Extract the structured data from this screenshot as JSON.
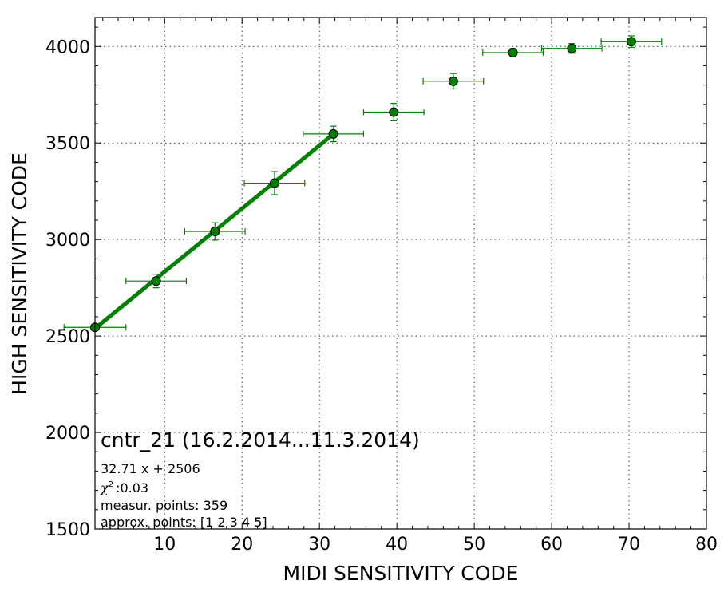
{
  "chart_data": {
    "type": "scatter",
    "xlabel": "MIDI SENSITIVITY CODE",
    "ylabel": "HIGH SENSITIVITY CODE",
    "xlim": [
      1,
      80
    ],
    "ylim": [
      1500,
      4150
    ],
    "xticks": [
      10,
      20,
      30,
      40,
      50,
      60,
      70,
      80
    ],
    "yticks": [
      1500,
      2000,
      2500,
      3000,
      3500,
      4000
    ],
    "grid": true,
    "series": [
      {
        "style": "errorbar-markers",
        "color": "#008000",
        "points": [
          {
            "x": 1.0,
            "y": 2545,
            "xerr": 4.0,
            "yerr": 15
          },
          {
            "x": 8.9,
            "y": 2785,
            "xerr": 3.9,
            "yerr": 35
          },
          {
            "x": 16.5,
            "y": 3042,
            "xerr": 3.9,
            "yerr": 45
          },
          {
            "x": 24.2,
            "y": 3292,
            "xerr": 3.9,
            "yerr": 60
          },
          {
            "x": 31.8,
            "y": 3547,
            "xerr": 3.9,
            "yerr": 40
          },
          {
            "x": 39.6,
            "y": 3660,
            "xerr": 3.9,
            "yerr": 45
          },
          {
            "x": 47.3,
            "y": 3820,
            "xerr": 3.9,
            "yerr": 40
          },
          {
            "x": 55.0,
            "y": 3968,
            "xerr": 3.9,
            "yerr": 22
          },
          {
            "x": 62.6,
            "y": 3990,
            "xerr": 3.9,
            "yerr": 25
          },
          {
            "x": 70.3,
            "y": 4025,
            "xerr": 3.9,
            "yerr": 30
          }
        ]
      },
      {
        "style": "fit-line",
        "color": "#008000",
        "x": [
          1.0,
          31.8
        ],
        "y": [
          2539,
          3546
        ]
      }
    ],
    "annotations": {
      "title": "cntr_21 (16.2.2014...11.3.2014)",
      "fit": "32.71 x + 2506",
      "chi_symbol": "χ",
      "chi_value": ":0.03",
      "measur": "measur. points: 359",
      "approx": "approx. points: [1 2 3 4 5]"
    }
  }
}
